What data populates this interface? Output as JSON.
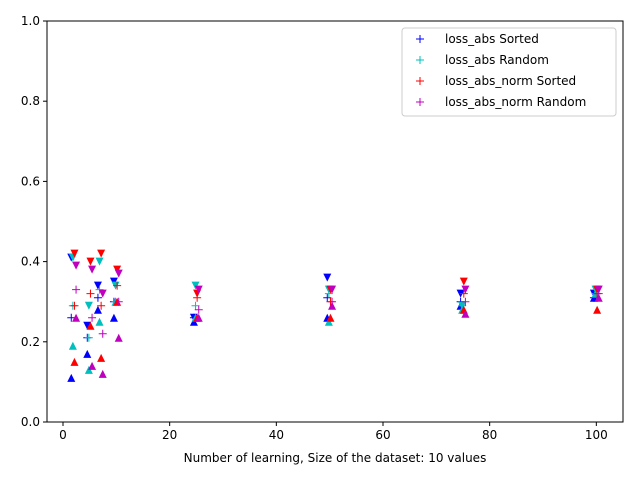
{
  "chart_data": {
    "type": "scatter",
    "title": "",
    "xlabel": "Number of learning, Size of the dataset: 10 values",
    "ylabel": "",
    "xlim": [
      -3,
      105
    ],
    "ylim": [
      0.0,
      1.0
    ],
    "xticks": [
      0,
      20,
      40,
      60,
      80,
      100
    ],
    "yticks": [
      0.0,
      0.2,
      0.4,
      0.6,
      0.8,
      1.0
    ],
    "xtick_labels": [
      "0",
      "20",
      "40",
      "60",
      "80",
      "100"
    ],
    "ytick_labels": [
      "0.0",
      "0.2",
      "0.4",
      "0.6",
      "0.8",
      "1.0"
    ],
    "grid": false,
    "legend_position": "top-right",
    "series": [
      {
        "name": "loss_abs Sorted",
        "color": "#0000ff",
        "x": [
          2,
          5,
          7,
          10,
          25,
          50,
          75,
          100
        ],
        "mean": [
          0.26,
          0.21,
          0.31,
          0.3,
          0.26,
          0.31,
          0.3,
          0.31
        ],
        "max": [
          0.41,
          0.24,
          0.34,
          0.35,
          0.26,
          0.36,
          0.32,
          0.32
        ],
        "min": [
          0.11,
          0.17,
          0.28,
          0.26,
          0.25,
          0.26,
          0.29,
          0.31
        ]
      },
      {
        "name": "loss_abs Random",
        "color": "#00bfbf",
        "x": [
          2,
          5,
          7,
          10,
          25,
          50,
          75,
          100
        ],
        "mean": [
          0.29,
          0.21,
          0.33,
          0.3,
          0.29,
          0.32,
          0.29,
          0.32
        ],
        "max": [
          0.41,
          0.29,
          0.4,
          0.34,
          0.34,
          0.33,
          0.29,
          0.33
        ],
        "min": [
          0.19,
          0.13,
          0.25,
          0.3,
          0.26,
          0.25,
          0.28,
          0.32
        ]
      },
      {
        "name": "loss_abs_norm Sorted",
        "color": "#ff0000",
        "x": [
          2,
          5,
          7,
          10,
          25,
          50,
          75,
          100
        ],
        "mean": [
          0.29,
          0.32,
          0.29,
          0.34,
          0.31,
          0.3,
          0.32,
          0.32
        ],
        "max": [
          0.42,
          0.4,
          0.42,
          0.38,
          0.32,
          0.33,
          0.35,
          0.33
        ],
        "min": [
          0.15,
          0.24,
          0.16,
          0.3,
          0.26,
          0.26,
          0.28,
          0.28
        ]
      },
      {
        "name": "loss_abs_norm Random",
        "color": "#bf00bf",
        "x": [
          2,
          5,
          7,
          10,
          25,
          50,
          75,
          100
        ],
        "mean": [
          0.33,
          0.26,
          0.22,
          0.3,
          0.28,
          0.3,
          0.3,
          0.32
        ],
        "max": [
          0.39,
          0.38,
          0.32,
          0.37,
          0.33,
          0.33,
          0.33,
          0.33
        ],
        "min": [
          0.26,
          0.14,
          0.12,
          0.21,
          0.26,
          0.29,
          0.27,
          0.31
        ]
      }
    ]
  }
}
